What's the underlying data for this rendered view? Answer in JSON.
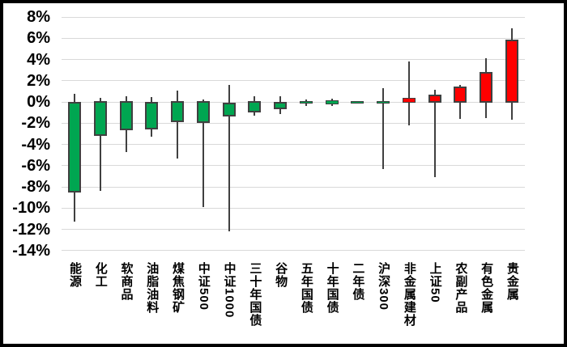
{
  "chart_data": {
    "type": "candlestick",
    "title": "",
    "xlabel": "",
    "ylabel": "",
    "grid": true,
    "y_axis": {
      "max": 8,
      "min": -14,
      "step": 2,
      "tick_labels": [
        "8%",
        "6%",
        "4%",
        "2%",
        "0%",
        "-2%",
        "-4%",
        "-6%",
        "-8%",
        "-10%",
        "-12%",
        "-14%"
      ]
    },
    "colors": {
      "up_fill": "#FF0000",
      "down_fill": "#00A651",
      "body_border": "#404040",
      "wick": "#404040",
      "gridline": "#D9D9D9",
      "frame": "#000000",
      "text": "#000000",
      "background": "#FFFFFF"
    },
    "convention": "red = close above open (up), green = close below open (down), values in percent",
    "categories": [
      "能源",
      "化工",
      "软商品",
      "油脂油料",
      "煤焦钢矿",
      "中证500",
      "中证1000",
      "三十年国债",
      "谷物",
      "五年国债",
      "十年国债",
      "二年债",
      "沪深300",
      "非金属建材",
      "上证50",
      "农副产品",
      "有色金属",
      "贵金属"
    ],
    "series": [
      {
        "name": "能源",
        "open": 0.0,
        "high": 0.8,
        "low": -11.3,
        "close": -8.5
      },
      {
        "name": "化工",
        "open": 0.1,
        "high": 0.35,
        "low": -8.4,
        "close": -3.2
      },
      {
        "name": "软商品",
        "open": 0.1,
        "high": 0.55,
        "low": -4.75,
        "close": -2.65
      },
      {
        "name": "油脂油料",
        "open": 0.0,
        "high": 0.45,
        "low": -3.25,
        "close": -2.6
      },
      {
        "name": "煤焦钢矿",
        "open": 0.1,
        "high": 1.1,
        "low": -5.3,
        "close": -1.9
      },
      {
        "name": "中证500",
        "open": 0.1,
        "high": 0.2,
        "low": -9.9,
        "close": -1.95
      },
      {
        "name": "中证1000",
        "open": -0.1,
        "high": 1.6,
        "low": -12.2,
        "close": -1.4
      },
      {
        "name": "三十年国债",
        "open": 0.1,
        "high": 0.5,
        "low": -1.3,
        "close": -1.0
      },
      {
        "name": "谷物",
        "open": 0.0,
        "high": 0.5,
        "low": -1.15,
        "close": -0.7
      },
      {
        "name": "五年国债",
        "open": 0.1,
        "high": 0.2,
        "low": -0.35,
        "close": -0.15
      },
      {
        "name": "十年国债",
        "open": 0.15,
        "high": 0.3,
        "low": -0.4,
        "close": -0.25
      },
      {
        "name": "二年债",
        "open": 0.05,
        "high": 0.1,
        "low": -0.15,
        "close": -0.1
      },
      {
        "name": "沪深300",
        "open": 0.1,
        "high": 1.3,
        "low": -6.35,
        "close": -0.05
      },
      {
        "name": "非金属建材",
        "open": -0.05,
        "high": 3.8,
        "low": -2.2,
        "close": 0.4
      },
      {
        "name": "上证50",
        "open": -0.05,
        "high": 1.15,
        "low": -7.1,
        "close": 0.7
      },
      {
        "name": "农副产品",
        "open": -0.05,
        "high": 1.6,
        "low": -1.6,
        "close": 1.45
      },
      {
        "name": "有色金属",
        "open": -0.1,
        "high": 4.1,
        "low": -1.5,
        "close": 2.85
      },
      {
        "name": "贵金属",
        "open": -0.05,
        "high": 6.9,
        "low": -1.65,
        "close": 5.9
      }
    ]
  }
}
